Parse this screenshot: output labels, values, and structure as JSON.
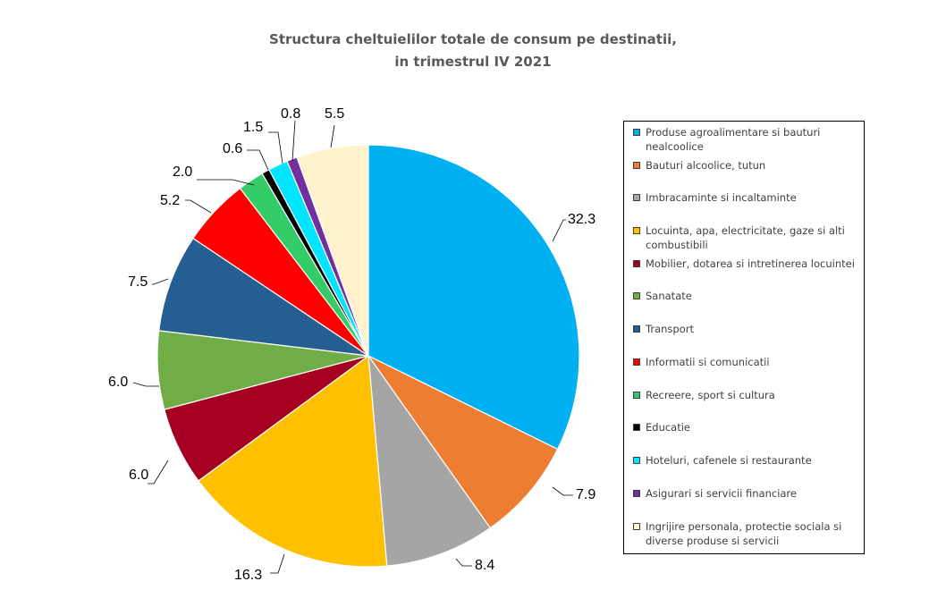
{
  "chart_data": {
    "type": "pie",
    "title": "Structura cheltuielilor totale de consum pe destinatii,",
    "subtitle": "in trimestrul IV 2021",
    "legend_position": "right",
    "direction": "clockwise",
    "start": "top",
    "slices": [
      {
        "label": "Produse agroalimentare si bauturi nealcoolice",
        "value": 32.3,
        "value_label": "32.3",
        "color": "#00B0F0"
      },
      {
        "label": "Bauturi alcoolice, tutun",
        "value": 7.9,
        "value_label": "7.9",
        "color": "#ED7D31"
      },
      {
        "label": "Imbracaminte si incaltaminte",
        "value": 8.4,
        "value_label": "8.4",
        "color": "#A5A5A5"
      },
      {
        "label": "Locuinta, apa, electricitate, gaze si alti combustibili",
        "value": 16.3,
        "value_label": "16.3",
        "color": "#FFC000"
      },
      {
        "label": "Mobilier, dotarea si intretinerea locuintei",
        "value": 6.0,
        "value_label": "6.0",
        "color": "#A50021"
      },
      {
        "label": "Sanatate",
        "value": 6.0,
        "value_label": "6.0",
        "color": "#70AD47"
      },
      {
        "label": "Transport",
        "value": 7.5,
        "value_label": "7.5",
        "color": "#255E91"
      },
      {
        "label": "Informatii si comunicatii",
        "value": 5.2,
        "value_label": "5.2",
        "color": "#FF0000"
      },
      {
        "label": "Recreere, sport si cultura",
        "value": 2.0,
        "value_label": "2.0",
        "color": "#33CC66"
      },
      {
        "label": "Educatie",
        "value": 0.6,
        "value_label": "0.6",
        "color": "#000000"
      },
      {
        "label": "Hoteluri, cafenele si restaurante",
        "value": 1.5,
        "value_label": "1.5",
        "color": "#00E5FF"
      },
      {
        "label": "Asigurari si servicii financiare",
        "value": 0.8,
        "value_label": "0.8",
        "color": "#7030A0"
      },
      {
        "label": "Ingrijire personala, protectie sociala si diverse produse si servicii",
        "value": 5.5,
        "value_label": "5.5",
        "color": "#FFF2CC"
      }
    ]
  }
}
